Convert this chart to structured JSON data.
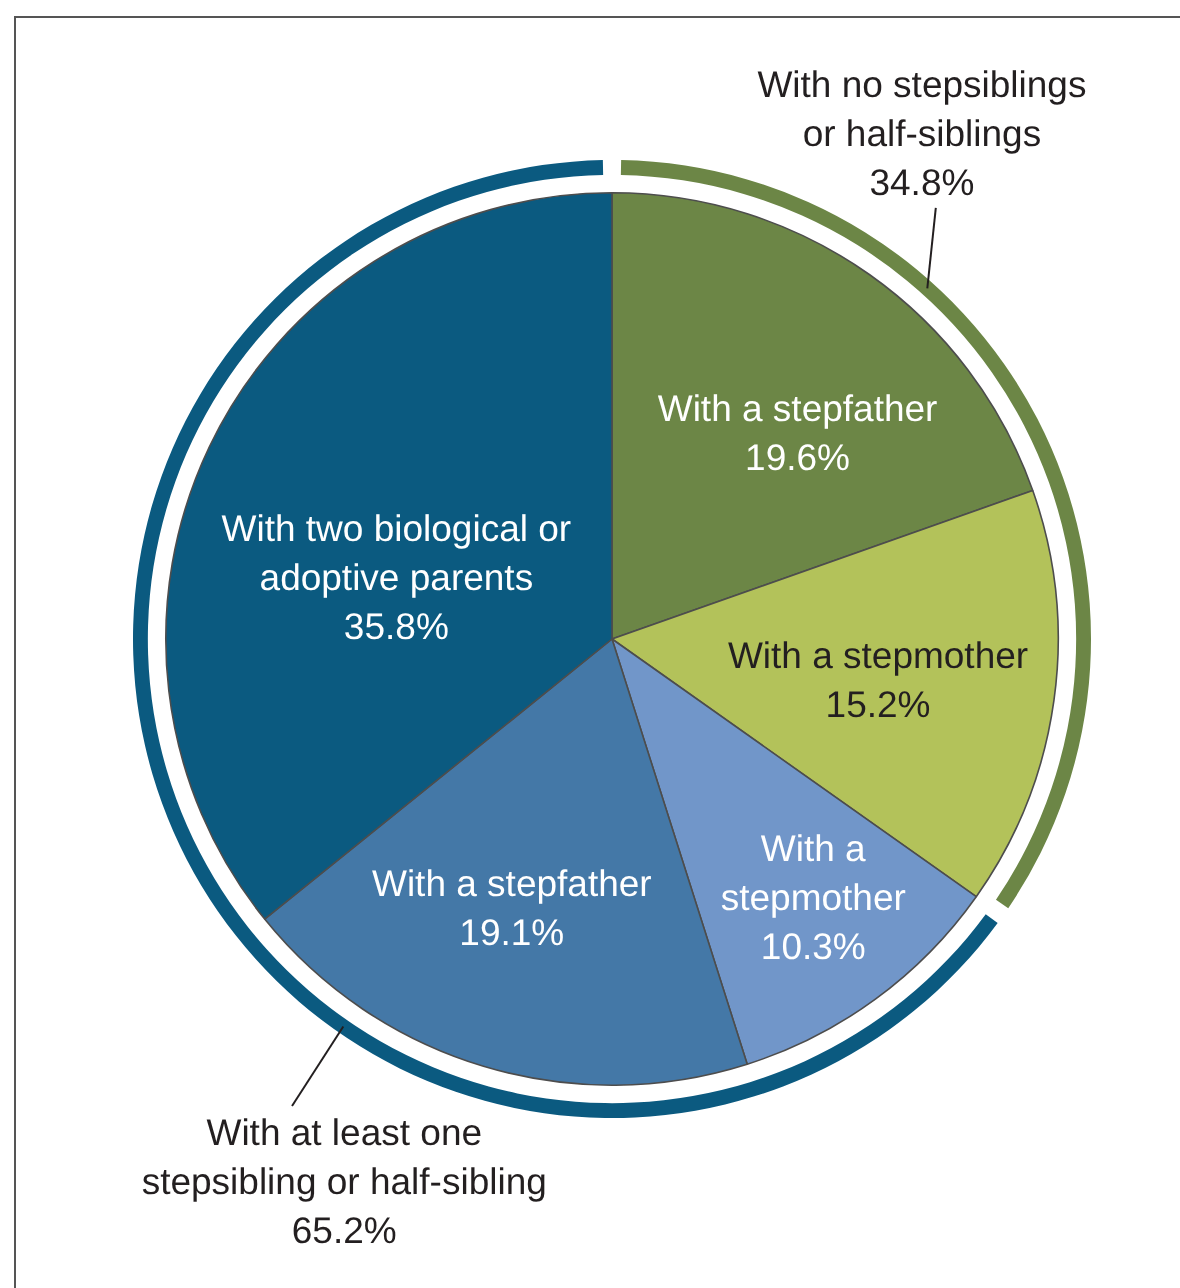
{
  "chart_data": [
    {
      "type": "donut",
      "categories": [
        "With no stepsiblings or half-siblings",
        "With at least one stepsibling or half-sibling"
      ],
      "values": [
        34.8,
        65.2
      ],
      "value_labels": [
        "34.8%",
        "65.2%"
      ],
      "colors": [
        "#6c8646",
        "#0b5a80"
      ]
    },
    {
      "type": "pie",
      "categories": [
        "With a stepfather",
        "With a stepmother",
        "With a stepmother",
        "With a stepfather",
        "With two biological or adoptive parents"
      ],
      "values": [
        19.6,
        15.2,
        10.3,
        19.1,
        35.8
      ],
      "value_labels": [
        "19.6%",
        "15.2%",
        "10.3%",
        "19.1%",
        "35.8%"
      ],
      "colors": [
        "#6c8646",
        "#b3c25a",
        "#7196c9",
        "#4478a7",
        "#0b5a80"
      ]
    }
  ]
}
